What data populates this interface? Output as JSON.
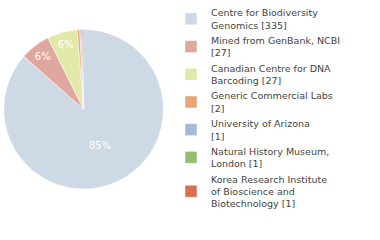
{
  "chart_data": {
    "type": "pie",
    "categories": [
      "Centre for Biodiversity Genomics [335]",
      "Mined from GenBank, NCBI [27]",
      "Canadian Centre for DNA Barcoding [27]",
      "Generic Commercial Labs [2]",
      "University of Arizona [1]",
      "Natural History Museum, London [1]",
      "Korea Research Institute of Bioscience and Biotechnology [1]"
    ],
    "values": [
      85,
      6,
      6,
      0.5,
      0.25,
      0.25,
      0.25
    ],
    "value_labels": [
      "85%",
      "6%",
      "6%",
      null,
      null,
      null,
      null
    ],
    "colors": [
      "#cdd9e5",
      "#e0a6a0",
      "#e2e8a8",
      "#e8a476",
      "#a3bbd9",
      "#93c070",
      "#d8704f"
    ],
    "data_labels": true,
    "legend": "right"
  }
}
